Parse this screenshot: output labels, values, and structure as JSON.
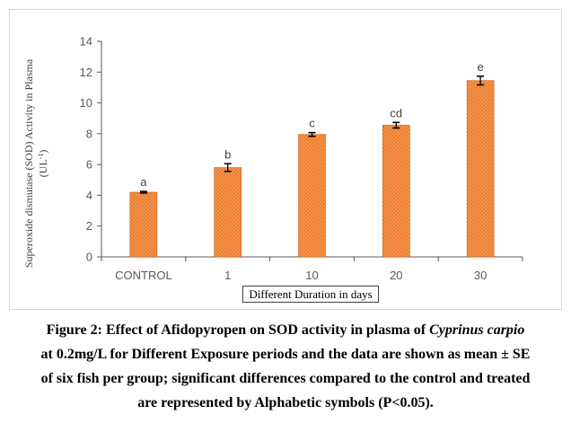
{
  "chart_data": {
    "type": "bar",
    "categories": [
      "CONTROL",
      "1",
      "10",
      "20",
      "30"
    ],
    "values": [
      4.2,
      5.8,
      7.95,
      8.55,
      11.45
    ],
    "errors": [
      0.05,
      0.25,
      0.12,
      0.18,
      0.28
    ],
    "data_labels": [
      "a",
      "b",
      "c",
      "cd",
      "e"
    ],
    "xlabel": "Different Duration in days",
    "ylabel_main": "Superoxide dismutase (SOD) Activity in Plasma",
    "ylabel_unit": "(UL",
    "ylabel_unit_sup": "-1",
    "ylabel_unit_close": ")",
    "ylim": [
      0,
      14
    ],
    "yticks": [
      "0",
      "2",
      "4",
      "6",
      "8",
      "10",
      "12",
      "14"
    ],
    "grid": false,
    "colors": {
      "bar_fill": "#ef7d31",
      "bar_dot": "#f0a85a",
      "bar_edge": "#c55a11",
      "axis": "#595959",
      "error": "#000000"
    }
  },
  "caption": {
    "line1_a": "Figure 2: Effect of Afidopyropen on SOD activity in plasma of ",
    "line1_b": "Cyprinus carpio",
    "line2": "at 0.2mg/L for Different Exposure periods and the data are shown as mean ± SE",
    "line3": "of six fish per group; significant differences compared to the control and treated",
    "line4": "are represented by Alphabetic symbols (P<0.05)."
  }
}
